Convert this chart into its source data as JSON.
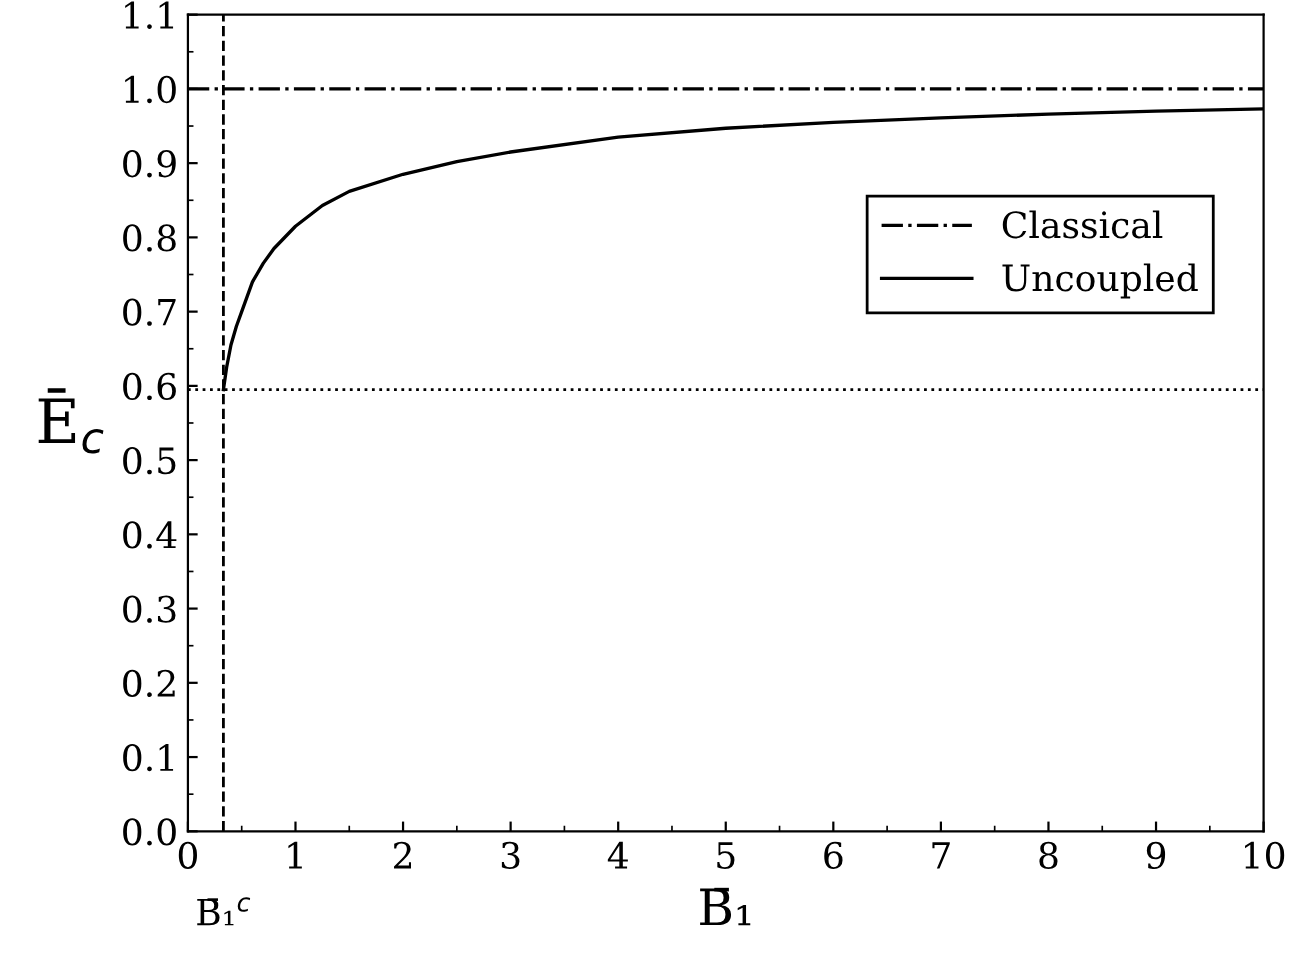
{
  "chart_data": {
    "type": "line",
    "xlabel": "B̄₁",
    "ylabel": "Ē$_{c}$",
    "xlim": [
      0,
      10
    ],
    "ylim": [
      0,
      1.1
    ],
    "xticks": [
      0,
      1,
      2,
      3,
      4,
      5,
      6,
      7,
      8,
      9,
      10
    ],
    "yticks": [
      {
        "value": 0,
        "label": "0.0"
      },
      0.1,
      0.2,
      0.3,
      0.4,
      0.5,
      0.6,
      0.7,
      0.8,
      0.9,
      {
        "value": 1,
        "label": "1.0"
      },
      1.1
    ],
    "series": [
      {
        "name": "Classical",
        "color": "#000000",
        "line_style": "dashdot",
        "x": [
          0,
          10
        ],
        "values": [
          1.0,
          1.0
        ]
      },
      {
        "name": "Uncoupled",
        "color": "#000000",
        "line_style": "solid",
        "x": [
          0.33,
          0.36,
          0.4,
          0.45,
          0.5,
          0.6,
          0.7,
          0.8,
          1.0,
          1.25,
          1.5,
          2,
          2.5,
          3,
          4,
          5,
          6,
          7,
          8,
          9,
          10
        ],
        "values": [
          0.595,
          0.625,
          0.655,
          0.68,
          0.7,
          0.74,
          0.765,
          0.785,
          0.815,
          0.843,
          0.862,
          0.885,
          0.902,
          0.915,
          0.935,
          0.947,
          0.955,
          0.961,
          0.966,
          0.97,
          0.973
        ]
      }
    ],
    "ref_lines": [
      {
        "axis": "x",
        "value": 0.33,
        "label": "B̄₁$^{c}$",
        "color": "#000000",
        "line_style": "dashed"
      },
      {
        "axis": "y",
        "value": 0.595,
        "color": "#000000",
        "line_style": "dotted"
      }
    ],
    "legend": "upper right",
    "grid": false,
    "marker": "none"
  }
}
